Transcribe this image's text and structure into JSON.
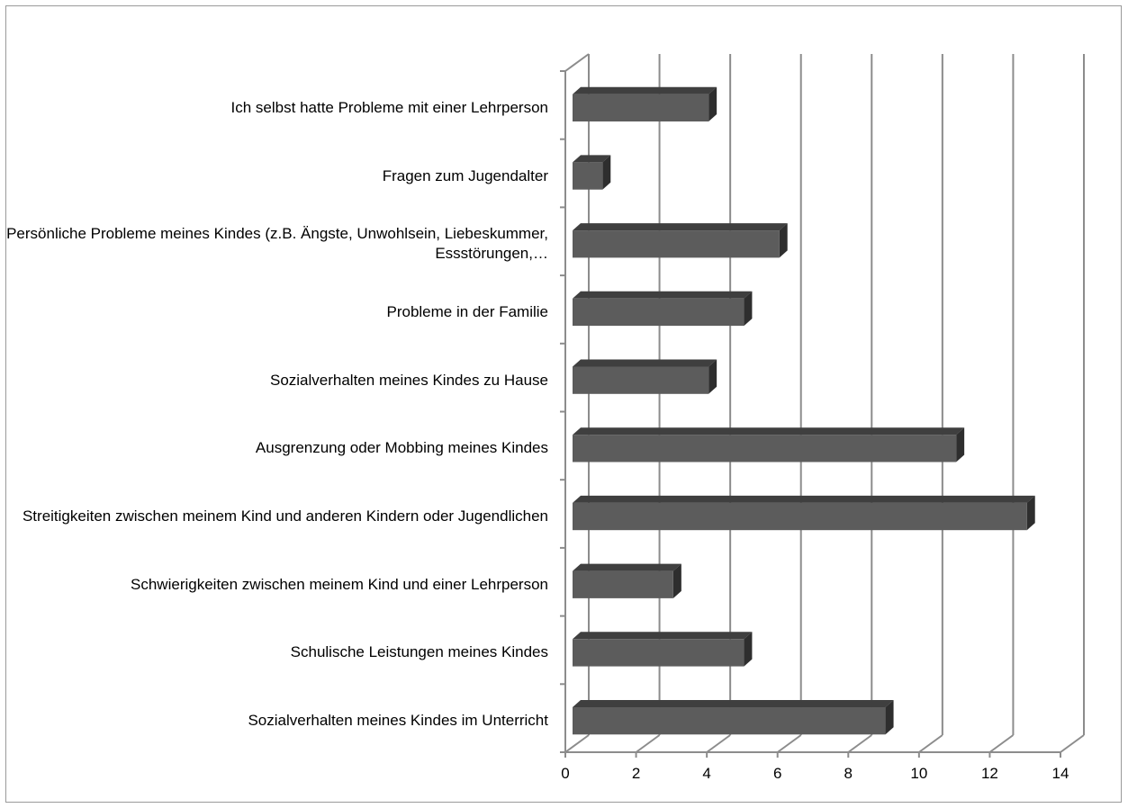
{
  "chart_data": {
    "type": "bar",
    "orientation": "horizontal",
    "style": "3d-clustered-bar",
    "categories": [
      "Ich selbst hatte Probleme mit einer Lehrperson",
      "Fragen zum Jugendalter",
      "Persönliche Probleme meines Kindes (z.B. Ängste, Unwohlsein, Liebeskummer, Essstörungen,…",
      "Probleme in der Familie",
      "Sozialverhalten meines Kindes zu Hause",
      "Ausgrenzung oder Mobbing meines Kindes",
      "Streitigkeiten zwischen meinem Kind und anderen Kindern oder Jugendlichen",
      "Schwierigkeiten zwischen meinem Kind und einer Lehrperson",
      "Schulische Leistungen meines Kindes",
      "Sozialverhalten meines Kindes im Unterricht"
    ],
    "values": [
      4,
      1,
      6,
      5,
      4,
      11,
      13,
      3,
      5,
      9
    ],
    "xlim": [
      0,
      14
    ],
    "xticks": [
      "0",
      "2",
      "4",
      "6",
      "8",
      "10",
      "12",
      "14"
    ],
    "grid": true,
    "legend": "none",
    "colors": {
      "bar_front": "#5c5c5c",
      "bar_top": "#3f3f3f",
      "bar_side": "#2e2e2e",
      "gridline": "#8c8c8c",
      "frame": "#9a9a9a"
    }
  }
}
